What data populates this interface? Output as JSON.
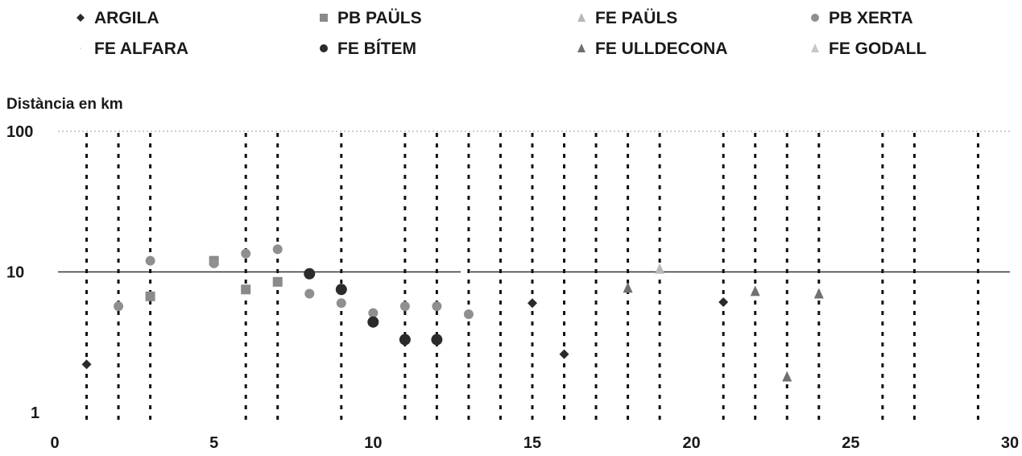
{
  "chart_data": {
    "type": "scatter",
    "ylabel": "Distància en km",
    "xlim": [
      0,
      30
    ],
    "ylim": [
      1,
      100
    ],
    "yscale": "log",
    "x_ticks": [
      "0",
      "5",
      "10",
      "15",
      "20",
      "25",
      "30"
    ],
    "y_ticks": [
      "1",
      "10",
      "100"
    ],
    "reference_line_y": 10,
    "vertical_dotted_lines_x": [
      1,
      2,
      3,
      6,
      7,
      9,
      11,
      12,
      13,
      14,
      15,
      16,
      17,
      18,
      19,
      21,
      22,
      23,
      24,
      26,
      27,
      29
    ],
    "legend": [
      {
        "name": "ARGILA",
        "marker": "diamond",
        "color": "#2a2a2a"
      },
      {
        "name": "PB PAÜLS",
        "marker": "square",
        "color": "#8a8a8a"
      },
      {
        "name": "FE PAÜLS",
        "marker": "triangle",
        "color": "#b8b8b8"
      },
      {
        "name": "PB XERTA",
        "marker": "circle",
        "color": "#8f8f8f"
      },
      {
        "name": "FE ALFARA",
        "marker": "none",
        "color": "#d8d8d8"
      },
      {
        "name": "FE BÍTEM",
        "marker": "circle",
        "color": "#2b2b2b"
      },
      {
        "name": "FE ULLDECONA",
        "marker": "triangle",
        "color": "#707070"
      },
      {
        "name": "FE GODALL",
        "marker": "triangle",
        "color": "#c8c8c8"
      }
    ],
    "series": [
      {
        "name": "ARGILA",
        "points": [
          [
            1,
            2.2
          ],
          [
            15,
            6.0
          ],
          [
            16,
            2.6
          ],
          [
            21,
            6.1
          ]
        ]
      },
      {
        "name": "PB PAÜLS",
        "points": [
          [
            3,
            6.7
          ],
          [
            5,
            12.0
          ],
          [
            6,
            7.5
          ],
          [
            7,
            8.5
          ]
        ]
      },
      {
        "name": "FE PAÜLS",
        "points": [
          [
            19,
            10.5
          ]
        ]
      },
      {
        "name": "PB XERTA",
        "points": [
          [
            2,
            5.7
          ],
          [
            3,
            12.0
          ],
          [
            5,
            11.5
          ],
          [
            6,
            13.5
          ],
          [
            7,
            14.5
          ],
          [
            8,
            7.0
          ],
          [
            9,
            6.0
          ],
          [
            10,
            5.1
          ],
          [
            11,
            5.7
          ],
          [
            12,
            5.7
          ],
          [
            13,
            5.0
          ]
        ]
      },
      {
        "name": "FE ALFARA",
        "points": []
      },
      {
        "name": "FE BÍTEM",
        "points": [
          [
            8,
            9.7
          ],
          [
            9,
            7.5
          ],
          [
            10,
            4.4
          ],
          [
            11,
            3.3
          ],
          [
            12,
            3.3
          ]
        ]
      },
      {
        "name": "FE ULLDECONA",
        "points": [
          [
            18,
            7.7
          ],
          [
            22,
            7.3
          ],
          [
            23,
            1.8
          ],
          [
            24,
            7.0
          ]
        ]
      },
      {
        "name": "FE GODALL",
        "points": []
      }
    ]
  }
}
